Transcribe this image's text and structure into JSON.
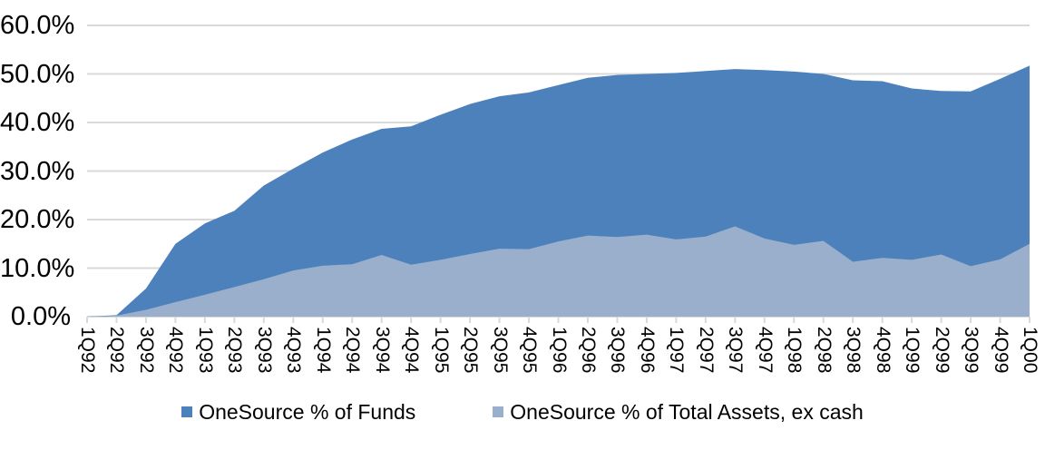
{
  "chart_data": {
    "type": "area",
    "overlay": true,
    "categories": [
      "1Q92",
      "2Q92",
      "3Q92",
      "4Q92",
      "1Q93",
      "2Q93",
      "3Q93",
      "4Q93",
      "1Q94",
      "2Q94",
      "3Q94",
      "4Q94",
      "1Q95",
      "2Q95",
      "3Q95",
      "4Q95",
      "1Q96",
      "2Q96",
      "3Q96",
      "4Q96",
      "1Q97",
      "2Q97",
      "3Q97",
      "4Q97",
      "1Q98",
      "2Q98",
      "3Q98",
      "4Q98",
      "1Q99",
      "2Q99",
      "3Q99",
      "4Q99",
      "1Q00"
    ],
    "series": [
      {
        "name": "OneSource % of Funds",
        "color": "#4D81BC",
        "values": [
          0,
          0.3,
          5.8,
          15.0,
          19.2,
          21.8,
          27.0,
          30.5,
          33.8,
          36.5,
          38.7,
          39.2,
          41.6,
          43.8,
          45.4,
          46.2,
          47.7,
          49.2,
          49.8,
          50.0,
          50.2,
          50.6,
          51.0,
          50.8,
          50.5,
          50.0,
          48.7,
          48.5,
          47.0,
          46.5,
          46.4,
          49.0,
          51.7
        ]
      },
      {
        "name": "OneSource % of Total Assets, ex cash",
        "color": "#9AAFCB",
        "values": [
          0,
          0.2,
          1.4,
          3.0,
          4.5,
          6.1,
          7.7,
          9.5,
          10.5,
          10.8,
          12.7,
          10.7,
          11.7,
          12.9,
          14.0,
          13.9,
          15.5,
          16.7,
          16.4,
          16.9,
          15.9,
          16.5,
          18.6,
          16.1,
          14.8,
          15.6,
          11.3,
          12.1,
          11.7,
          12.8,
          10.4,
          11.8,
          15.0
        ]
      }
    ],
    "title": "",
    "xlabel": "",
    "ylabel": "",
    "ylim": [
      0,
      60
    ],
    "y_tick_labels": [
      "60.0%",
      "50.0%",
      "40.0%",
      "30.0%",
      "20.0%",
      "10.0%",
      "0.0%"
    ],
    "grid": "horizontal",
    "grid_color": "#D9D9D9",
    "axis_text_color": "#000000",
    "legend_position": "bottom"
  }
}
